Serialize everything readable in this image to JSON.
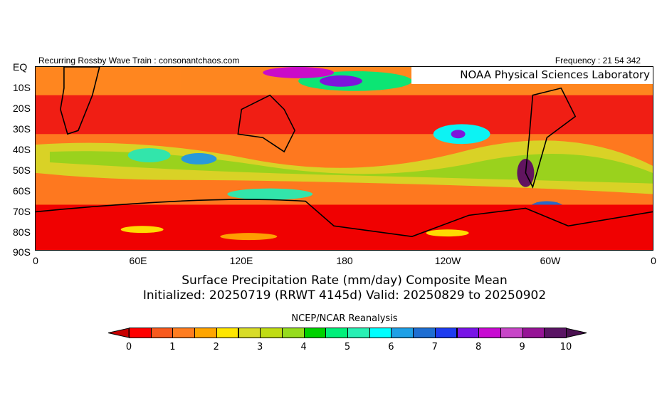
{
  "header": {
    "left": "Recurring Rossby Wave Train : consonantchaos.com",
    "right": "Frequency : 21 54 342",
    "lab": "NOAA Physical Sciences Laboratory"
  },
  "map": {
    "lat_labels": [
      "EQ",
      "10S",
      "20S",
      "30S",
      "40S",
      "50S",
      "60S",
      "70S",
      "80S",
      "90S"
    ],
    "lon_labels": [
      "0",
      "60E",
      "120E",
      "180",
      "120W",
      "60W",
      "0"
    ]
  },
  "title": {
    "line1": "Surface Precipitation Rate (mm/day) Composite Mean",
    "line2": "Initialized: 20250719 (RRWT 4145d) Valid: 20250829 to 20250902",
    "source": "NCEP/NCAR Reanalysis"
  },
  "colorbar": {
    "ticks": [
      "0",
      "1",
      "2",
      "3",
      "4",
      "5",
      "6",
      "7",
      "8",
      "9",
      "10"
    ],
    "low_color": "#c80000",
    "high_color": "#4a1050",
    "colors": [
      "#ff0000",
      "#f85a1e",
      "#ff7d20",
      "#ffa500",
      "#ffe600",
      "#d8dc28",
      "#c0dc14",
      "#96dc1e",
      "#00d200",
      "#00f07a",
      "#28f0b4",
      "#00ffff",
      "#1ea0e6",
      "#1e6ed2",
      "#1e3cf0",
      "#7814e6",
      "#c80ad2",
      "#c846c8",
      "#961496",
      "#5a1464"
    ]
  }
}
